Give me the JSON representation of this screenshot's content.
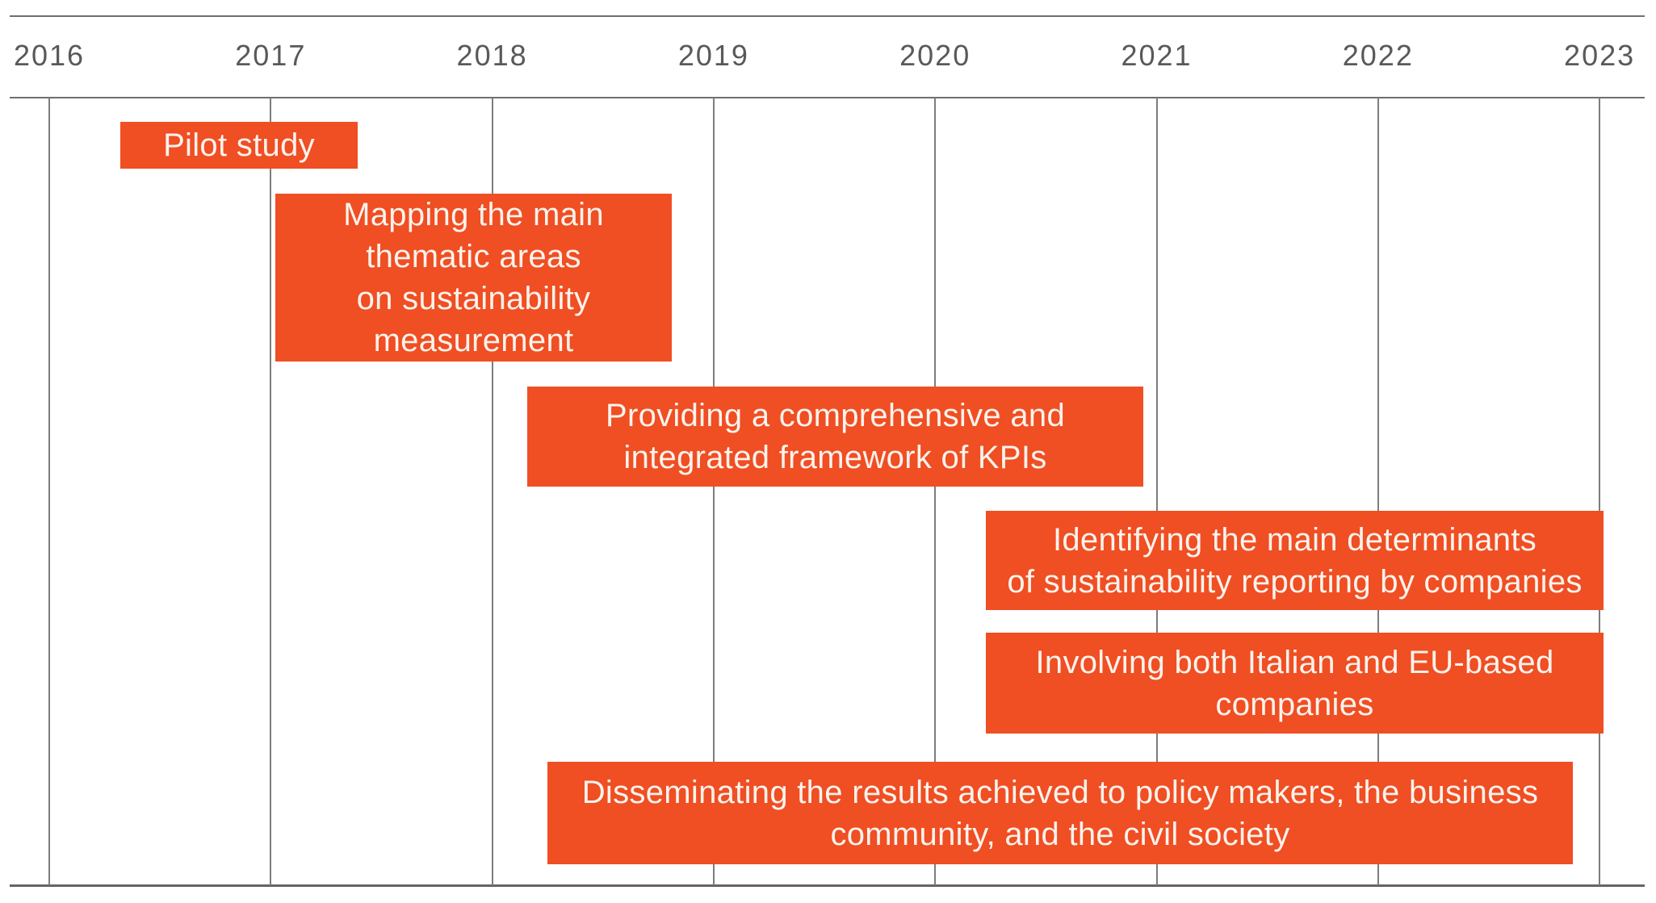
{
  "chart_data": {
    "type": "gantt",
    "title": "",
    "xlabel": "",
    "ylabel": "",
    "x_axis": {
      "ticks": [
        "2016",
        "2017",
        "2018",
        "2019",
        "2020",
        "2021",
        "2022",
        "2023"
      ],
      "range": [
        2016,
        2023
      ],
      "grid": true,
      "grid_orientation": "vertical"
    },
    "legend": "none",
    "tasks": [
      {
        "label": "Pilot study",
        "lines": [
          "Pilot study"
        ],
        "start": 2016.32,
        "end": 2017.39
      },
      {
        "label": "Mapping the main thematic areas on sustainability measurement",
        "lines": [
          "Mapping the main",
          "thematic areas",
          "on sustainability",
          "measurement"
        ],
        "start": 2017.02,
        "end": 2018.81
      },
      {
        "label": "Providing a comprehensive and integrated framework of KPIs",
        "lines": [
          "Providing a comprehensive and",
          "integrated framework of KPIs"
        ],
        "start": 2018.16,
        "end": 2020.94
      },
      {
        "label": "Identifying the main determinants of sustainability reporting by companies",
        "lines": [
          "Identifying the main determinants",
          "of sustainability reporting by companies"
        ],
        "start": 2020.23,
        "end": 2023.02
      },
      {
        "label": "Involving both Italian and EU-based companies",
        "lines": [
          "Involving both Italian and EU-based",
          "companies"
        ],
        "start": 2020.23,
        "end": 2023.02
      },
      {
        "label": "Disseminating the results achieved to policy makers, the business community, and the civil society",
        "lines": [
          "Disseminating the results achieved to policy makers, the business",
          "community, and the civil society"
        ],
        "start": 2018.25,
        "end": 2022.88
      }
    ],
    "colors": {
      "bar": "#f04e23",
      "bar_text": "#faf3ec",
      "axis_text": "#58595b",
      "rule": "#6f6f6f",
      "gridline": "#7d7d7d"
    }
  }
}
